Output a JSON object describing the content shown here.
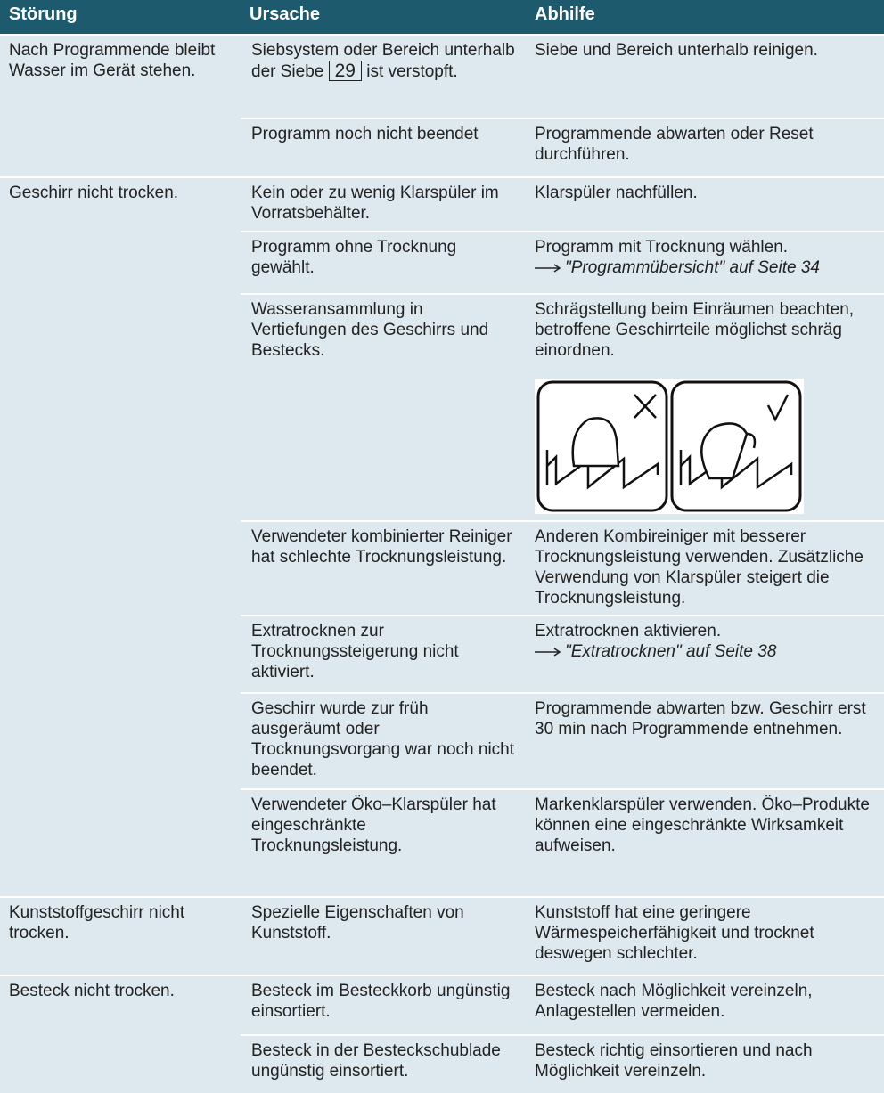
{
  "header": {
    "col1": "Störung",
    "col2": "Ursache",
    "col3": "Abhilfe"
  },
  "groups": [
    {
      "fault": "Nach Programmende bleibt Wasser im Gerät stehen.",
      "rows": [
        {
          "cause": "Siebsystem oder Bereich unterhalb der Siebe",
          "cause_ref": "29",
          "cause_after": "ist verstopft.",
          "remedy": "Siebe und Bereich unterhalb reinigen."
        },
        {
          "cause": "Programm noch nicht beendet",
          "remedy": "Programmende abwarten oder Reset durchführen."
        }
      ]
    },
    {
      "fault": "Geschirr nicht trocken.",
      "rows": [
        {
          "cause": "Kein oder zu wenig Klarspüler im Vorratsbehälter.",
          "remedy": "Klarspüler nachfüllen."
        },
        {
          "cause": "Programm ohne Trocknung gewählt.",
          "remedy": "Programm mit Trocknung wählen.",
          "remedy_link": "\"Programmübersicht\" auf Seite 34"
        },
        {
          "cause": "Wasseransammlung in Vertiefungen des Geschirrs und Bestecks.",
          "remedy": "Schrägstellung beim Einräumen beachten, betroffene Geschirrteile möglichst schräg einordnen."
        },
        {
          "cause": "Verwendeter kombinierter Reiniger hat schlechte Trocknungsleistung.",
          "remedy": "Anderen Kombireiniger mit besserer Trocknungsleistung verwenden. Zusätzliche Verwendung von Klarspüler steigert die Trocknungsleistung."
        },
        {
          "cause": "Extratrocknen zur Trocknungssteigerung nicht aktiviert.",
          "remedy": "Extratrocknen aktivieren.",
          "remedy_link": "\"Extratrocknen\" auf Seite 38"
        },
        {
          "cause": "Geschirr wurde zur früh ausgeräumt oder Trocknungsvorgang war noch nicht beendet.",
          "remedy": "Programmende abwarten bzw. Geschirr erst 30 min nach Programmende entnehmen."
        },
        {
          "cause": "Verwendeter Öko–Klarspüler hat eingeschränkte Trocknungsleistung.",
          "remedy": "Markenklarspüler verwenden. Öko–Produkte können eine eingeschränkte Wirksamkeit aufweisen."
        }
      ]
    },
    {
      "fault": "Kunststoffgeschirr nicht trocken.",
      "rows": [
        {
          "cause": "Spezielle Eigenschaften von Kunststoff.",
          "remedy": "Kunststoff hat eine geringere Wärmespeicherfähigkeit und trocknet deswegen schlechter."
        }
      ]
    },
    {
      "fault": "Besteck nicht trocken.",
      "rows": [
        {
          "cause": "Besteck im Besteckkorb ungünstig einsortiert.",
          "remedy": "Besteck nach Möglichkeit vereinzeln, Anlagestellen vermeiden."
        },
        {
          "cause": "Besteck in der Besteckschublade ungünstig einsortiert.",
          "remedy": "Besteck richtig einsortieren und nach Möglichkeit vereinzeln."
        }
      ]
    }
  ]
}
